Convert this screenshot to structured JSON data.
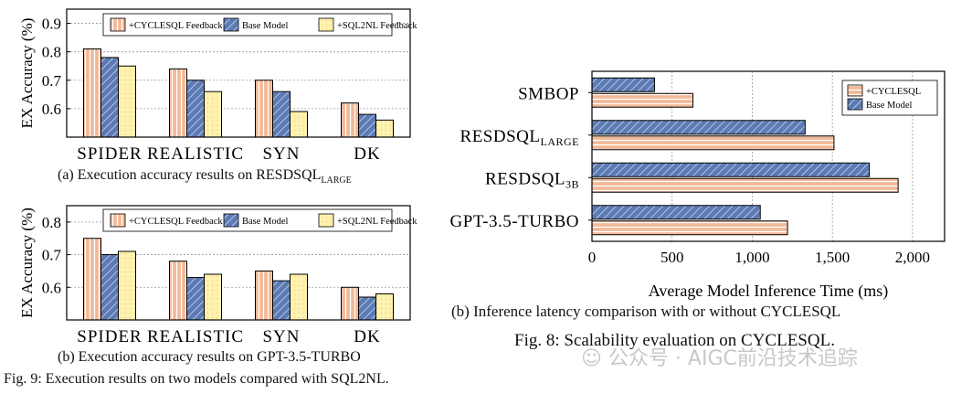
{
  "colors": {
    "cyclesql": "#f2b896",
    "base": "#5c7ab3",
    "sql2nl": "#fff2b0"
  },
  "chart_data": [
    {
      "id": "a",
      "type": "bar",
      "ylabel": "EX Accuracy (%)",
      "ylim": [
        0.5,
        0.95
      ],
      "yticks": [
        "0.6",
        "0.7",
        "0.8",
        "0.9"
      ],
      "categories": [
        "SPIDER",
        "REALISTIC",
        "SYN",
        "DK"
      ],
      "series": [
        {
          "name": "+CYCLESQL Feedback",
          "values": [
            0.81,
            0.74,
            0.7,
            0.62
          ]
        },
        {
          "name": "Base Model",
          "values": [
            0.78,
            0.7,
            0.66,
            0.58
          ]
        },
        {
          "name": "+SQL2NL Feedback",
          "values": [
            0.75,
            0.66,
            0.59,
            0.56
          ]
        }
      ],
      "caption": "(a) Execution accuracy results on RESDSQL",
      "caption_sub": "LARGE"
    },
    {
      "id": "b",
      "type": "bar",
      "ylabel": "EX Accuracy (%)",
      "ylim": [
        0.5,
        0.85
      ],
      "yticks": [
        "0.6",
        "0.7",
        "0.8"
      ],
      "categories": [
        "SPIDER",
        "REALISTIC",
        "SYN",
        "DK"
      ],
      "series": [
        {
          "name": "+CYCLESQL Feedback",
          "values": [
            0.75,
            0.68,
            0.65,
            0.6
          ]
        },
        {
          "name": "Base Model",
          "values": [
            0.7,
            0.63,
            0.62,
            0.57
          ]
        },
        {
          "name": "+SQL2NL Feedback",
          "values": [
            0.71,
            0.64,
            0.64,
            0.58
          ]
        }
      ],
      "caption": "(b) Execution accuracy results on GPT-3.5-TURBO"
    },
    {
      "id": "c",
      "type": "bar",
      "orientation": "horizontal",
      "xlabel": "Average Model Inference Time (ms)",
      "xlim": [
        0,
        2200
      ],
      "xticks": [
        "0",
        "500",
        "1,000",
        "1,500",
        "2,000"
      ],
      "categories": [
        "SMBOP",
        "RESDSQLLARGE",
        "RESDSQL3B",
        "GPT-3.5-TURBO"
      ],
      "category_labels": [
        "SMBOP",
        "RESDSQL",
        "RESDSQL",
        "GPT-3.5-TURBO"
      ],
      "category_subs": [
        "",
        "LARGE",
        "3B",
        ""
      ],
      "series": [
        {
          "name": "+CYCLESQL",
          "values": [
            630,
            1510,
            1910,
            1220
          ]
        },
        {
          "name": "Base Model",
          "values": [
            390,
            1330,
            1730,
            1050
          ]
        }
      ],
      "caption": "(b) Inference latency comparison with or without CYCLESQL"
    }
  ],
  "captions": {
    "fig8": "Fig. 8: Scalability evaluation on CYCLESQL.",
    "fig9": "Fig. 9: Execution results on two models compared with SQL2NL."
  },
  "watermark": "公众号 · AIGC前沿技术追踪"
}
